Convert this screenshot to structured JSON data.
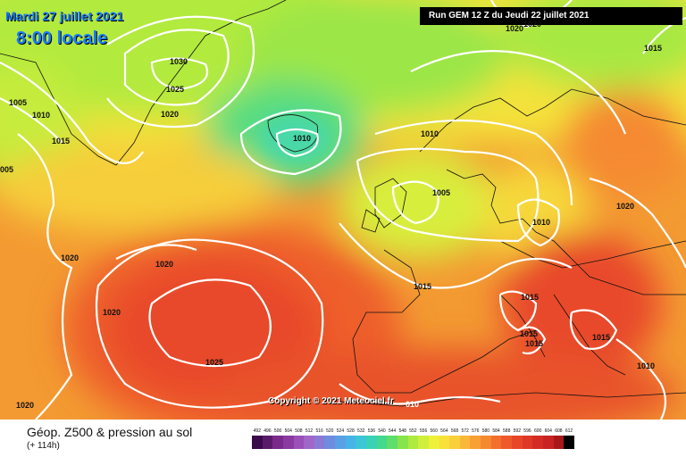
{
  "header": {
    "date_text": "Mardi 27 juillet 2021",
    "time_text": "8:00 locale",
    "run_text": "Run GEM 12 Z du Jeudi 22 juillet 2021"
  },
  "copyright": "Copyright © 2021 Meteociel.fr",
  "footer": {
    "title": "Géop. Z500 & pression au sol",
    "subtitle": "(+ 114h)"
  },
  "legend": {
    "values": [
      "492",
      "496",
      "500",
      "504",
      "508",
      "512",
      "516",
      "520",
      "524",
      "528",
      "532",
      "536",
      "540",
      "544",
      "548",
      "552",
      "556",
      "560",
      "564",
      "568",
      "572",
      "576",
      "580",
      "584",
      "588",
      "592",
      "596",
      "600",
      "604",
      "608",
      "612"
    ],
    "colors": [
      "#3a0a4a",
      "#5a1a6a",
      "#7a2a8a",
      "#8a3aa0",
      "#9a50b8",
      "#a066c8",
      "#8a7ad6",
      "#6e8ce0",
      "#5aa0e6",
      "#46b4e8",
      "#3cc6d8",
      "#3ad2b4",
      "#44d890",
      "#5ede6a",
      "#86e44c",
      "#aeea40",
      "#d0ee3c",
      "#eef03a",
      "#f8e23a",
      "#fad03a",
      "#fab838",
      "#f8a034",
      "#f68830",
      "#f2702c",
      "#ee5a2a",
      "#e84628",
      "#e03826",
      "#d42c24",
      "#c82222",
      "#a81818",
      "#000000"
    ]
  },
  "isobars": [
    {
      "id": "l1030a",
      "text": "1030"
    },
    {
      "id": "l1025a",
      "text": "1025"
    },
    {
      "id": "l1020a",
      "text": "1020"
    },
    {
      "id": "l1005a",
      "text": "1005"
    },
    {
      "id": "l1010a",
      "text": "1010"
    },
    {
      "id": "l1015a",
      "text": "1015"
    },
    {
      "id": "l005",
      "text": "005"
    },
    {
      "id": "l1010b",
      "text": "1010"
    },
    {
      "id": "l1020b",
      "text": "1020"
    },
    {
      "id": "l1010c",
      "text": "1010"
    },
    {
      "id": "l1005b",
      "text": "1005"
    },
    {
      "id": "l1010d",
      "text": "1010"
    },
    {
      "id": "l1020c",
      "text": "1020"
    },
    {
      "id": "l1015b",
      "text": "1015"
    },
    {
      "id": "l1015c",
      "text": "1015"
    },
    {
      "id": "l1015d",
      "text": "1015"
    },
    {
      "id": "l1015e",
      "text": "1015"
    },
    {
      "id": "l1015f",
      "text": "1015"
    },
    {
      "id": "l1010e",
      "text": "1010"
    },
    {
      "id": "l1020d",
      "text": "1020"
    },
    {
      "id": "l1020e",
      "text": "1020"
    },
    {
      "id": "l1020f",
      "text": "1020"
    },
    {
      "id": "l1025b",
      "text": "1025"
    },
    {
      "id": "l1020g",
      "text": "1020"
    },
    {
      "id": "l010",
      "text": "010"
    },
    {
      "id": "l1015g",
      "text": "1015"
    },
    {
      "id": "l1020h",
      "text": "1020"
    }
  ]
}
